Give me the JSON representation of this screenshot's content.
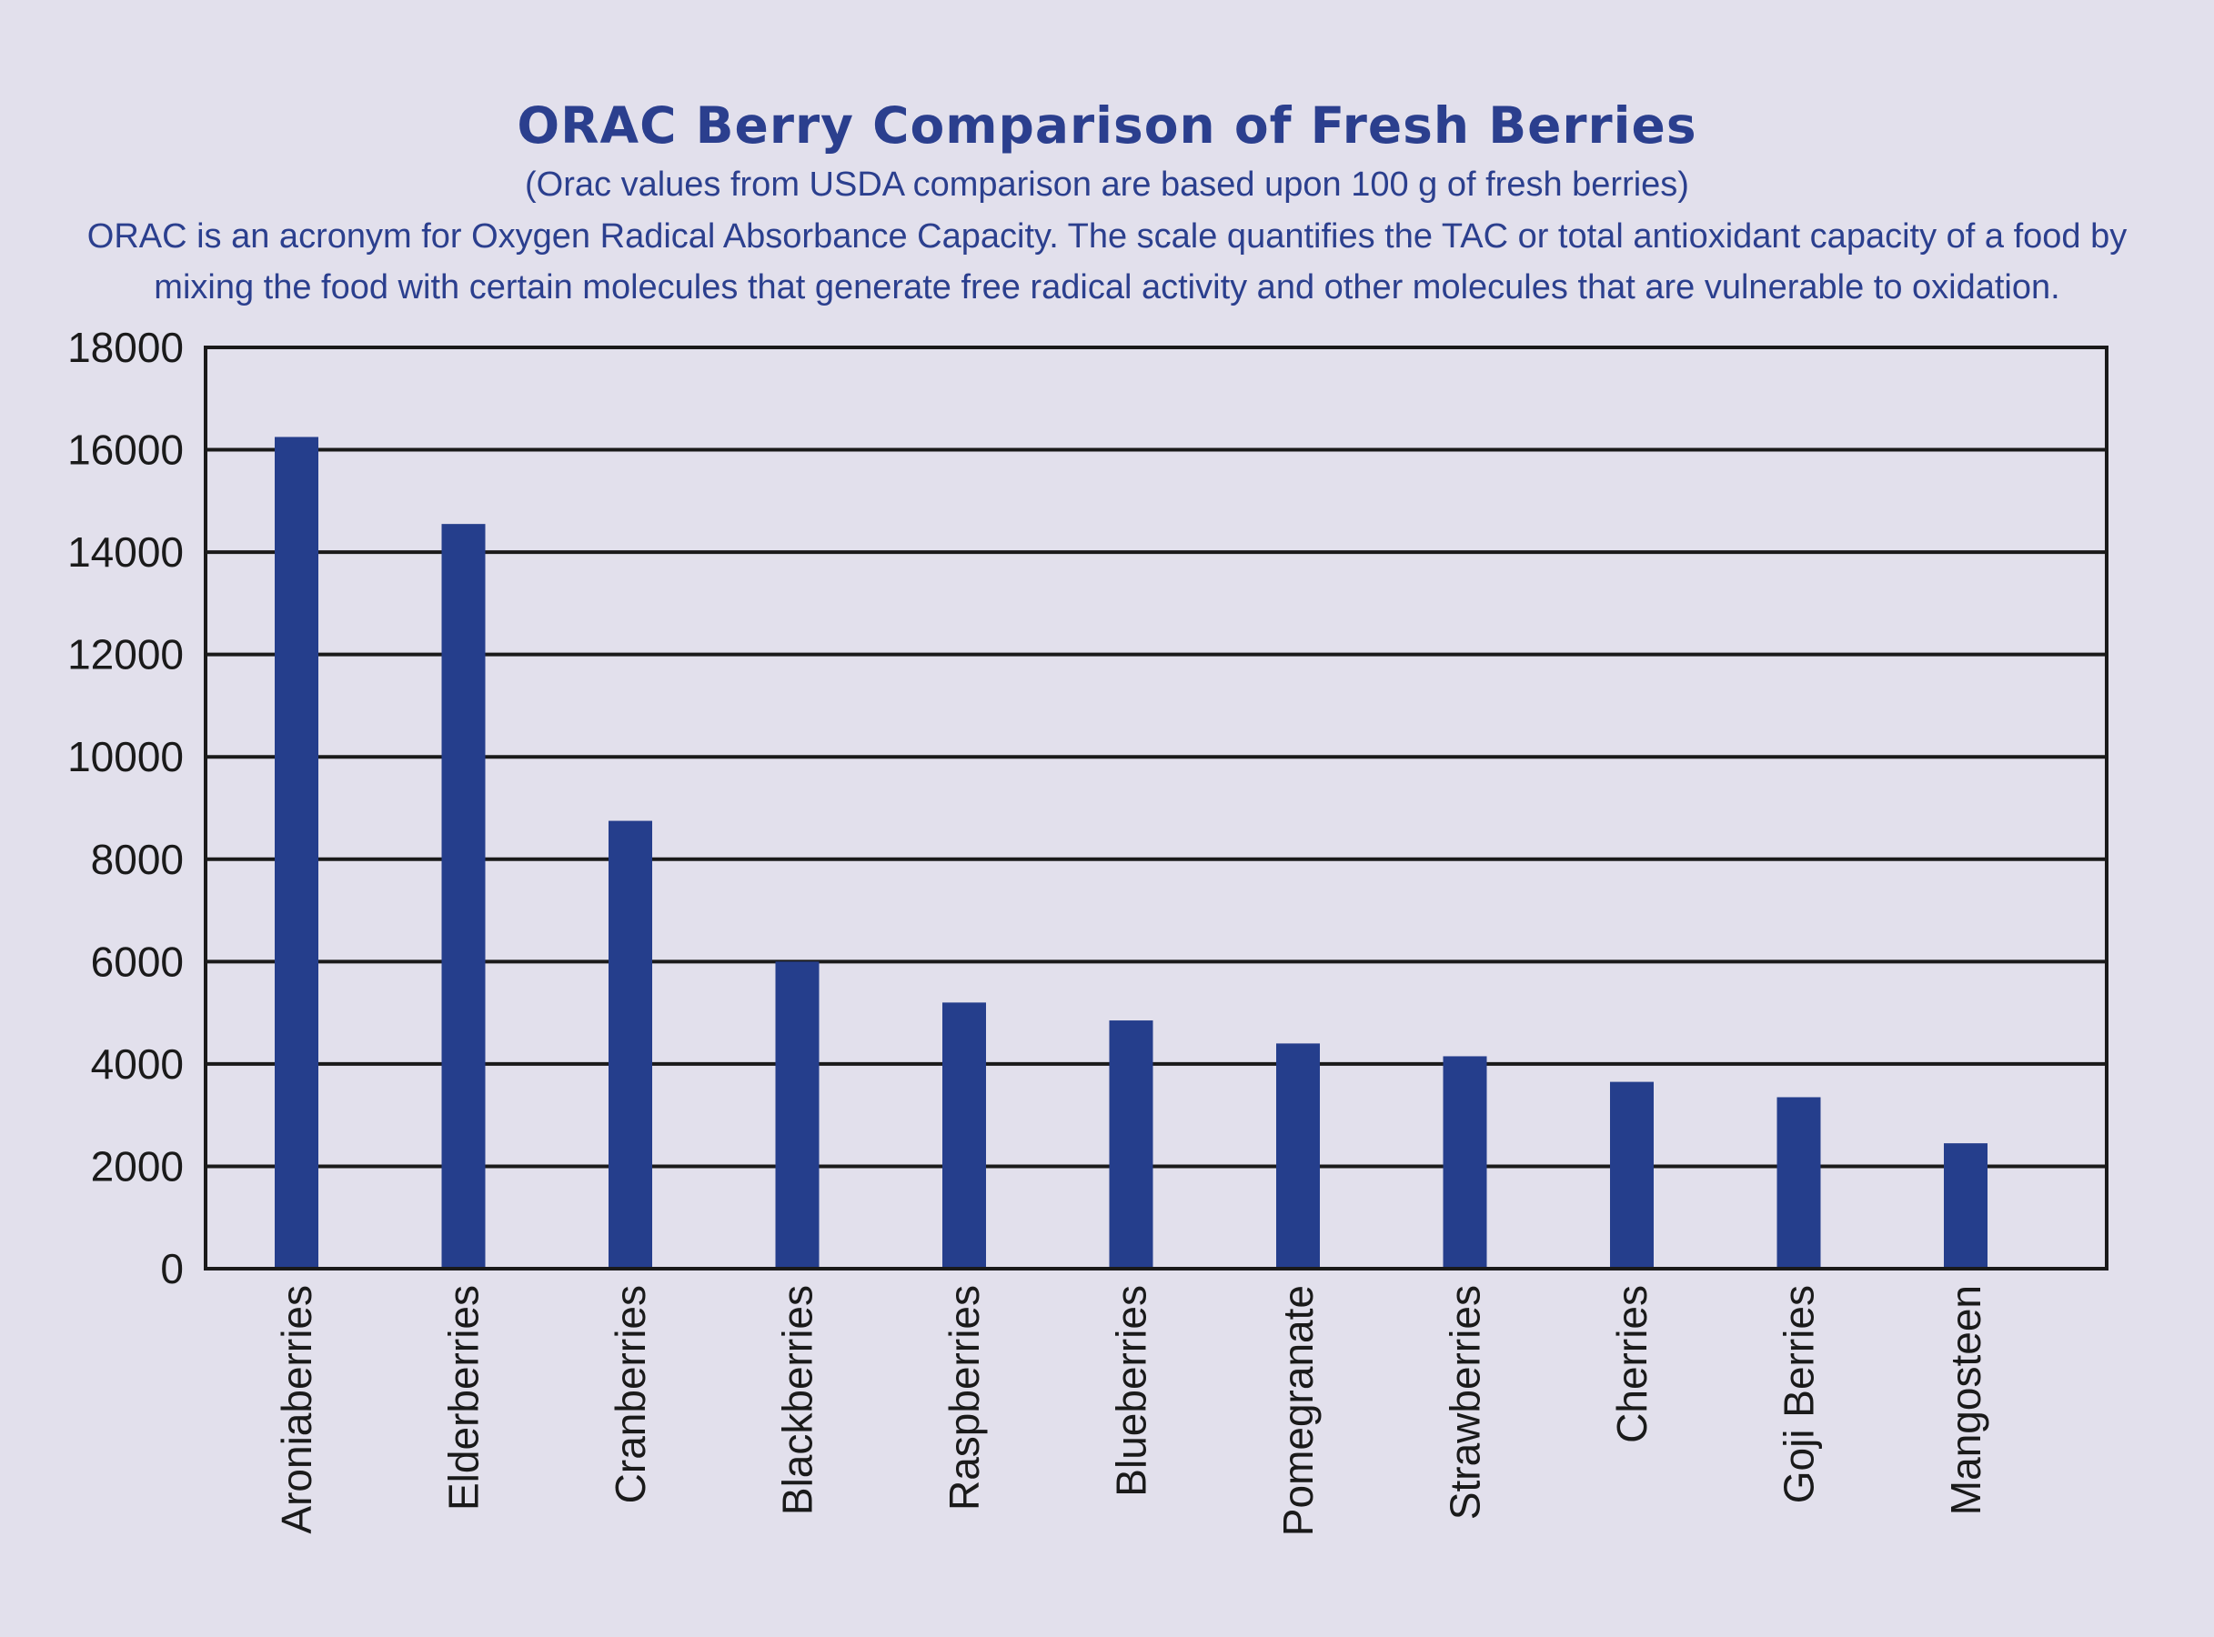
{
  "chart_data": {
    "type": "bar",
    "title": "ORAC Berry Comparison of Fresh Berries",
    "subtitle": "(Orac values from USDA comparison are based upon 100 g of fresh berries)",
    "description_lines": [
      "ORAC is an acronym for Oxygen Radical Absorbance Capacity. The scale quantifies the TAC or total antioxidant capacity of a food by",
      "mixing the food with certain molecules that generate free radical activity and other molecules that are vulnerable to oxidation."
    ],
    "xlabel": "",
    "ylabel": "",
    "categories": [
      "Aroniaberries",
      "Elderberries",
      "Cranberries",
      "Blackberries",
      "Raspberries",
      "Blueberries",
      "Pomegranate",
      "Strawberries",
      "Cherries",
      "Goji Berries",
      "Mangosteen"
    ],
    "values": [
      16250,
      14550,
      8750,
      6000,
      5200,
      4850,
      4400,
      4150,
      3650,
      3350,
      2450
    ],
    "ylim": [
      0,
      18000
    ],
    "yticks": [
      0,
      2000,
      4000,
      6000,
      8000,
      10000,
      12000,
      14000,
      16000,
      18000
    ],
    "grid": true,
    "legend": "none",
    "bar_color": "#253e8c",
    "text_color": "#2b3f8e",
    "background_color": "#e2e0ec"
  }
}
